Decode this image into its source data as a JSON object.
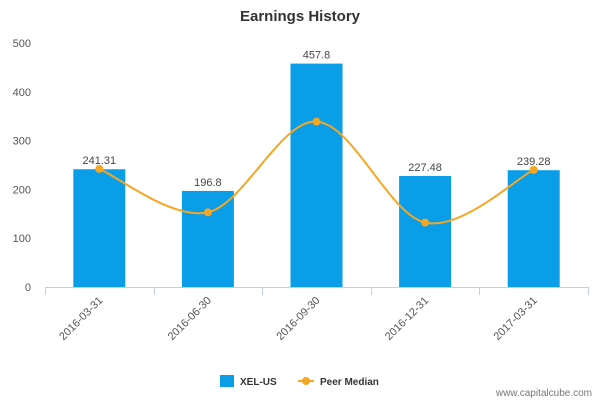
{
  "chart_data": {
    "type": "bar",
    "title": "Earnings History",
    "categories": [
      "2016-03-31",
      "2016-06-30",
      "2016-09-30",
      "2016-12-31",
      "2017-03-31"
    ],
    "series": [
      {
        "name": "XEL-US",
        "type": "bar",
        "values": [
          241.31,
          196.8,
          457.8,
          227.48,
          239.28
        ],
        "labels": [
          "241.31",
          "196.8",
          "457.8",
          "227.48",
          "239.28"
        ],
        "color": "#0a9ee8"
      },
      {
        "name": "Peer Median",
        "type": "line",
        "smooth": true,
        "values": [
          242,
          153,
          339,
          132,
          240
        ],
        "color": "#f5a623"
      }
    ],
    "ylim": [
      0,
      500
    ],
    "yticks": [
      "0",
      "100",
      "200",
      "300",
      "400",
      "500"
    ],
    "grid": false,
    "legend": "bottom-center"
  },
  "watermark": "www.capitalcube.com"
}
